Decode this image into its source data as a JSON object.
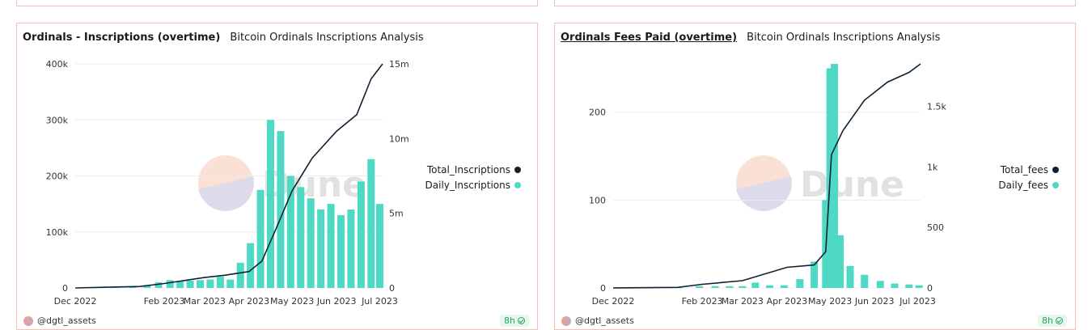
{
  "panels": [
    {
      "title": "Ordinals - Inscriptions (overtime)",
      "subtitle": "Bitcoin Ordinals Inscriptions Analysis",
      "author": "@dgtl_assets",
      "badge": "8h",
      "legend": [
        "Total_Inscriptions",
        "Daily_Inscriptions"
      ],
      "watermark": "Dune"
    },
    {
      "title": "Ordinals Fees Paid (overtime)",
      "subtitle": "Bitcoin Ordinals Inscriptions Analysis",
      "author": "@dgtl_assets",
      "badge": "8h",
      "legend": [
        "Total_fees",
        "Daily_fees"
      ],
      "watermark": "Dune"
    }
  ],
  "colors": {
    "bar": "#4dd9c4",
    "line": "#0f2233",
    "border": "#f2c4b5",
    "grid": "#ececec"
  },
  "chart_data": [
    {
      "type": "bar+line",
      "x_tick_labels": [
        "Dec 2022",
        "Feb 2023",
        "Mar 2023",
        "Apr 2023",
        "May 2023",
        "Jun 2023",
        "Jul 2023"
      ],
      "x_range": [
        "2022-12-01",
        "2023-07-03"
      ],
      "left_axis": {
        "ticks": [
          "0",
          "100k",
          "200k",
          "300k",
          "400k"
        ],
        "ylim": [
          0,
          400000
        ]
      },
      "right_axis": {
        "ticks": [
          "0",
          "5m",
          "10m",
          "15m"
        ],
        "ylim": [
          0,
          15000000
        ]
      },
      "series": [
        {
          "name": "Daily_Inscriptions",
          "kind": "bar",
          "axis": "left",
          "points": [
            [
              "2022-12-14",
              500
            ],
            [
              "2022-12-28",
              1000
            ],
            [
              "2023-01-10",
              2000
            ],
            [
              "2023-01-20",
              5000
            ],
            [
              "2023-01-28",
              10000
            ],
            [
              "2023-02-05",
              14000
            ],
            [
              "2023-02-12",
              12000
            ],
            [
              "2023-02-19",
              13000
            ],
            [
              "2023-02-26",
              14000
            ],
            [
              "2023-03-05",
              15000
            ],
            [
              "2023-03-12",
              20000
            ],
            [
              "2023-03-19",
              15000
            ],
            [
              "2023-03-26",
              45000
            ],
            [
              "2023-04-02",
              80000
            ],
            [
              "2023-04-09",
              175000
            ],
            [
              "2023-04-16",
              300000
            ],
            [
              "2023-04-23",
              280000
            ],
            [
              "2023-04-30",
              200000
            ],
            [
              "2023-05-07",
              180000
            ],
            [
              "2023-05-14",
              160000
            ],
            [
              "2023-05-21",
              140000
            ],
            [
              "2023-05-28",
              150000
            ],
            [
              "2023-06-04",
              130000
            ],
            [
              "2023-06-11",
              140000
            ],
            [
              "2023-06-18",
              190000
            ],
            [
              "2023-06-25",
              230000
            ],
            [
              "2023-07-01",
              150000
            ]
          ]
        },
        {
          "name": "Total_Inscriptions",
          "kind": "line",
          "axis": "right",
          "points": [
            [
              "2022-12-01",
              0
            ],
            [
              "2023-01-15",
              100000
            ],
            [
              "2023-02-01",
              300000
            ],
            [
              "2023-02-15",
              500000
            ],
            [
              "2023-03-01",
              700000
            ],
            [
              "2023-03-15",
              850000
            ],
            [
              "2023-04-01",
              1100000
            ],
            [
              "2023-04-10",
              1800000
            ],
            [
              "2023-04-20",
              4000000
            ],
            [
              "2023-05-01",
              6500000
            ],
            [
              "2023-05-15",
              8700000
            ],
            [
              "2023-06-01",
              10500000
            ],
            [
              "2023-06-15",
              11600000
            ],
            [
              "2023-06-25",
              14000000
            ],
            [
              "2023-07-03",
              15000000
            ]
          ]
        }
      ]
    },
    {
      "type": "bar+line",
      "x_tick_labels": [
        "Dec 2022",
        "Feb 2023",
        "Mar 2023",
        "Apr 2023",
        "May 2023",
        "Jun 2023",
        "Jul 2023"
      ],
      "x_range": [
        "2022-12-01",
        "2023-07-03"
      ],
      "left_axis": {
        "ticks": [
          "0",
          "100",
          "200"
        ],
        "ylim": [
          0,
          255
        ]
      },
      "right_axis": {
        "ticks": [
          "0",
          "500",
          "1k",
          "1.5k"
        ],
        "ylim": [
          0,
          1850
        ]
      },
      "series": [
        {
          "name": "Daily_fees",
          "kind": "bar",
          "axis": "left",
          "points": [
            [
              "2023-01-15",
              0.5
            ],
            [
              "2023-01-30",
              2
            ],
            [
              "2023-02-10",
              2
            ],
            [
              "2023-02-20",
              2
            ],
            [
              "2023-03-01",
              2
            ],
            [
              "2023-03-10",
              6
            ],
            [
              "2023-03-20",
              3
            ],
            [
              "2023-03-30",
              3
            ],
            [
              "2023-04-10",
              10
            ],
            [
              "2023-04-20",
              30
            ],
            [
              "2023-04-28",
              100
            ],
            [
              "2023-05-01",
              250
            ],
            [
              "2023-05-04",
              255
            ],
            [
              "2023-05-08",
              60
            ],
            [
              "2023-05-15",
              25
            ],
            [
              "2023-05-25",
              15
            ],
            [
              "2023-06-05",
              8
            ],
            [
              "2023-06-15",
              5
            ],
            [
              "2023-06-25",
              4
            ],
            [
              "2023-07-02",
              3
            ]
          ]
        },
        {
          "name": "Total_fees",
          "kind": "line",
          "axis": "right",
          "points": [
            [
              "2022-12-01",
              0
            ],
            [
              "2023-01-15",
              5
            ],
            [
              "2023-02-01",
              30
            ],
            [
              "2023-03-01",
              60
            ],
            [
              "2023-04-01",
              170
            ],
            [
              "2023-04-20",
              190
            ],
            [
              "2023-04-28",
              300
            ],
            [
              "2023-05-02",
              1100
            ],
            [
              "2023-05-10",
              1300
            ],
            [
              "2023-05-25",
              1550
            ],
            [
              "2023-06-10",
              1700
            ],
            [
              "2023-06-25",
              1780
            ],
            [
              "2023-07-03",
              1850
            ]
          ]
        }
      ]
    }
  ]
}
